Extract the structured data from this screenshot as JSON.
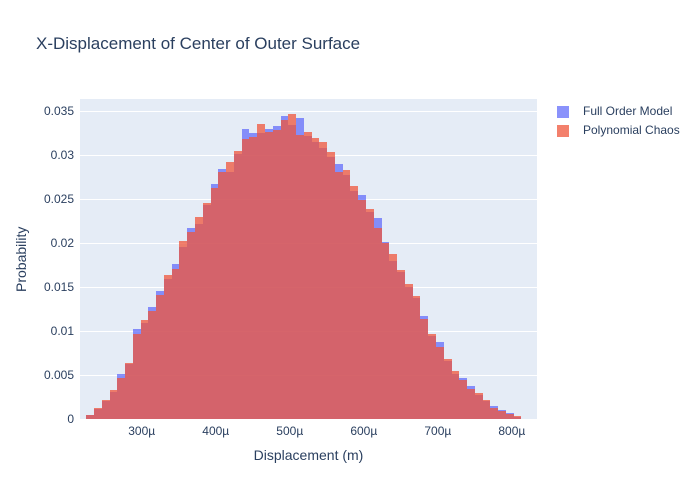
{
  "title": "X-Displacement of Center of Outer Surface",
  "legend": {
    "items": [
      {
        "label": "Full Order Model",
        "color": "#636efa",
        "opacity": 0.75
      },
      {
        "label": "Polynomial Chaos",
        "color": "#ef553b",
        "opacity": 0.75
      }
    ]
  },
  "colors": {
    "paper": "#ffffff",
    "plot_background": "#e5ecf6",
    "gridline": "#ffffff",
    "text": "#2a3f5f",
    "full_order_model": "#636efa",
    "polynomial_chaos": "#ef553b"
  },
  "chart_data": {
    "type": "bar",
    "subtype": "histogram-overlay",
    "title": "X-Displacement of Center of Outer Surface",
    "xlabel": "Displacement (m)",
    "ylabel": "Probability",
    "grid": true,
    "legend_position": "outside-top-right",
    "x_axis_range": [
      0.0002166,
      0.000834
    ],
    "y_axis_range": [
      0,
      0.03636
    ],
    "bin_start": 0.000225,
    "bin_width": 1.05e-05,
    "x_ticks": [
      {
        "value": 0.0003,
        "label": "300µ"
      },
      {
        "value": 0.0004,
        "label": "400µ"
      },
      {
        "value": 0.0005,
        "label": "500µ"
      },
      {
        "value": 0.0006,
        "label": "600µ"
      },
      {
        "value": 0.0007,
        "label": "700µ"
      },
      {
        "value": 0.0008,
        "label": "800µ"
      }
    ],
    "y_ticks": [
      {
        "value": 0,
        "label": "0"
      },
      {
        "value": 0.005,
        "label": "0.005"
      },
      {
        "value": 0.01,
        "label": "0.01"
      },
      {
        "value": 0.015,
        "label": "0.015"
      },
      {
        "value": 0.02,
        "label": "0.02"
      },
      {
        "value": 0.025,
        "label": "0.025"
      },
      {
        "value": 0.03,
        "label": "0.03"
      },
      {
        "value": 0.035,
        "label": "0.035"
      }
    ],
    "series": [
      {
        "name": "Full Order Model",
        "color": "#636efa",
        "opacity": 0.75,
        "values": [
          0.0005,
          0.0011,
          0.002,
          0.0031,
          0.0051,
          0.0062,
          0.0102,
          0.0109,
          0.0127,
          0.0145,
          0.0159,
          0.0176,
          0.0196,
          0.0217,
          0.0222,
          0.0243,
          0.0267,
          0.0284,
          0.0281,
          0.0301,
          0.0329,
          0.0325,
          0.0325,
          0.033,
          0.0333,
          0.0344,
          0.0334,
          0.0342,
          0.0322,
          0.0315,
          0.0308,
          0.0298,
          0.029,
          0.0277,
          0.0259,
          0.0255,
          0.0235,
          0.0228,
          0.0201,
          0.018,
          0.0167,
          0.015,
          0.0137,
          0.0117,
          0.0094,
          0.0088,
          0.0066,
          0.0051,
          0.0047,
          0.0037,
          0.0027,
          0.002,
          0.0015,
          0.001,
          0.0007,
          0.0002
        ]
      },
      {
        "name": "Polynomial Chaos",
        "color": "#ef553b",
        "opacity": 0.75,
        "values": [
          0.0004,
          0.0012,
          0.0022,
          0.0033,
          0.0047,
          0.0064,
          0.0097,
          0.0112,
          0.0123,
          0.0141,
          0.0164,
          0.0171,
          0.0202,
          0.0213,
          0.0229,
          0.0246,
          0.0263,
          0.0281,
          0.0292,
          0.0304,
          0.0318,
          0.0321,
          0.0335,
          0.0326,
          0.0328,
          0.034,
          0.0347,
          0.0323,
          0.0326,
          0.0319,
          0.0315,
          0.0303,
          0.0281,
          0.0283,
          0.0265,
          0.0249,
          0.0239,
          0.0217,
          0.02,
          0.0188,
          0.0169,
          0.0153,
          0.014,
          0.0114,
          0.0097,
          0.0082,
          0.0068,
          0.0055,
          0.0044,
          0.0034,
          0.003,
          0.0022,
          0.0013,
          0.0009,
          0.0006,
          0.0003
        ]
      }
    ]
  }
}
